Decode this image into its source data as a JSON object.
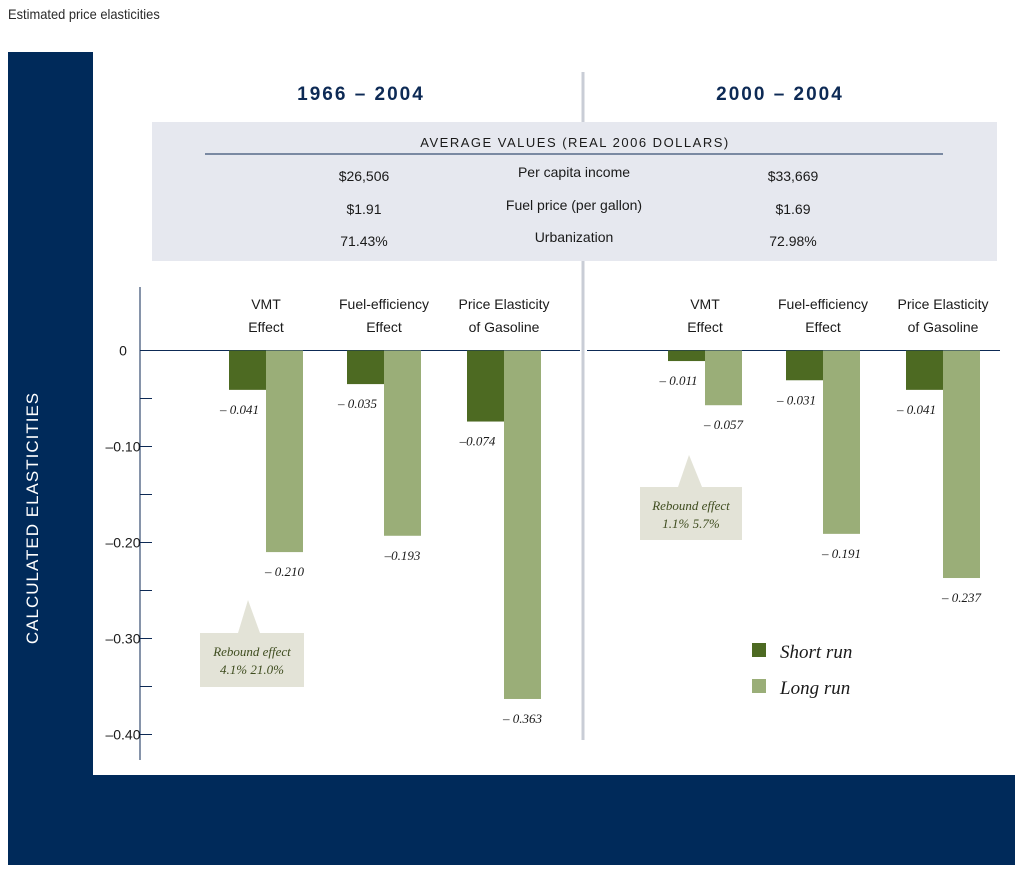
{
  "caption": "Estimated price elasticities",
  "y_axis_label": "CALCULATED ELASTICITIES",
  "periods": [
    "1966 – 2004",
    "2000 – 2004"
  ],
  "avg_table": {
    "title": "AVERAGE VALUES (REAL 2006 DOLLARS)",
    "rows": [
      {
        "label": "Per capita income",
        "p1": "$26,506",
        "p2": "$33,669"
      },
      {
        "label": "Fuel price (per gallon)",
        "p1": "$1.91",
        "p2": "$1.69"
      },
      {
        "label": "Urbanization",
        "p1": "71.43%",
        "p2": "72.98%"
      }
    ]
  },
  "rebound": [
    {
      "title": "Rebound effect",
      "values": "4.1%    21.0%"
    },
    {
      "title": "Rebound effect",
      "values": "1.1%     5.7%"
    }
  ],
  "colors": {
    "short_run": "#4d6a22",
    "long_run": "#9aae78",
    "frame": "#002a5a",
    "table_bg": "#e6e8ef"
  },
  "chart_data": {
    "type": "bar",
    "ylabel": "CALCULATED ELASTICITIES",
    "ylim": [
      -0.4,
      0
    ],
    "yticks": [
      "0",
      "–0.10",
      "–0.20",
      "–0.30",
      "–0.40"
    ],
    "legend": [
      "Short run",
      "Long run"
    ],
    "legend_position": "bottom-right",
    "panels": [
      {
        "title": "1966 – 2004",
        "categories": [
          [
            "VMT",
            "Effect"
          ],
          [
            "Fuel-efficiency",
            "Effect"
          ],
          [
            "Price Elasticity",
            "of Gasoline"
          ]
        ],
        "series": [
          {
            "name": "Short run",
            "values": [
              -0.041,
              -0.035,
              -0.074
            ],
            "labels": [
              "– 0.041",
              "– 0.035",
              "–0.074"
            ]
          },
          {
            "name": "Long run",
            "values": [
              -0.21,
              -0.193,
              -0.363
            ],
            "labels": [
              "– 0.210",
              "–0.193",
              "– 0.363"
            ]
          }
        ]
      },
      {
        "title": "2000 – 2004",
        "categories": [
          [
            "VMT",
            "Effect"
          ],
          [
            "Fuel-efficiency",
            "Effect"
          ],
          [
            "Price Elasticity",
            "of Gasoline"
          ]
        ],
        "series": [
          {
            "name": "Short run",
            "values": [
              -0.011,
              -0.031,
              -0.041
            ],
            "labels": [
              "– 0.011",
              "– 0.031",
              "– 0.041"
            ]
          },
          {
            "name": "Long run",
            "values": [
              -0.057,
              -0.191,
              -0.237
            ],
            "labels": [
              "– 0.057",
              "– 0.191",
              "– 0.237"
            ]
          }
        ]
      }
    ]
  }
}
